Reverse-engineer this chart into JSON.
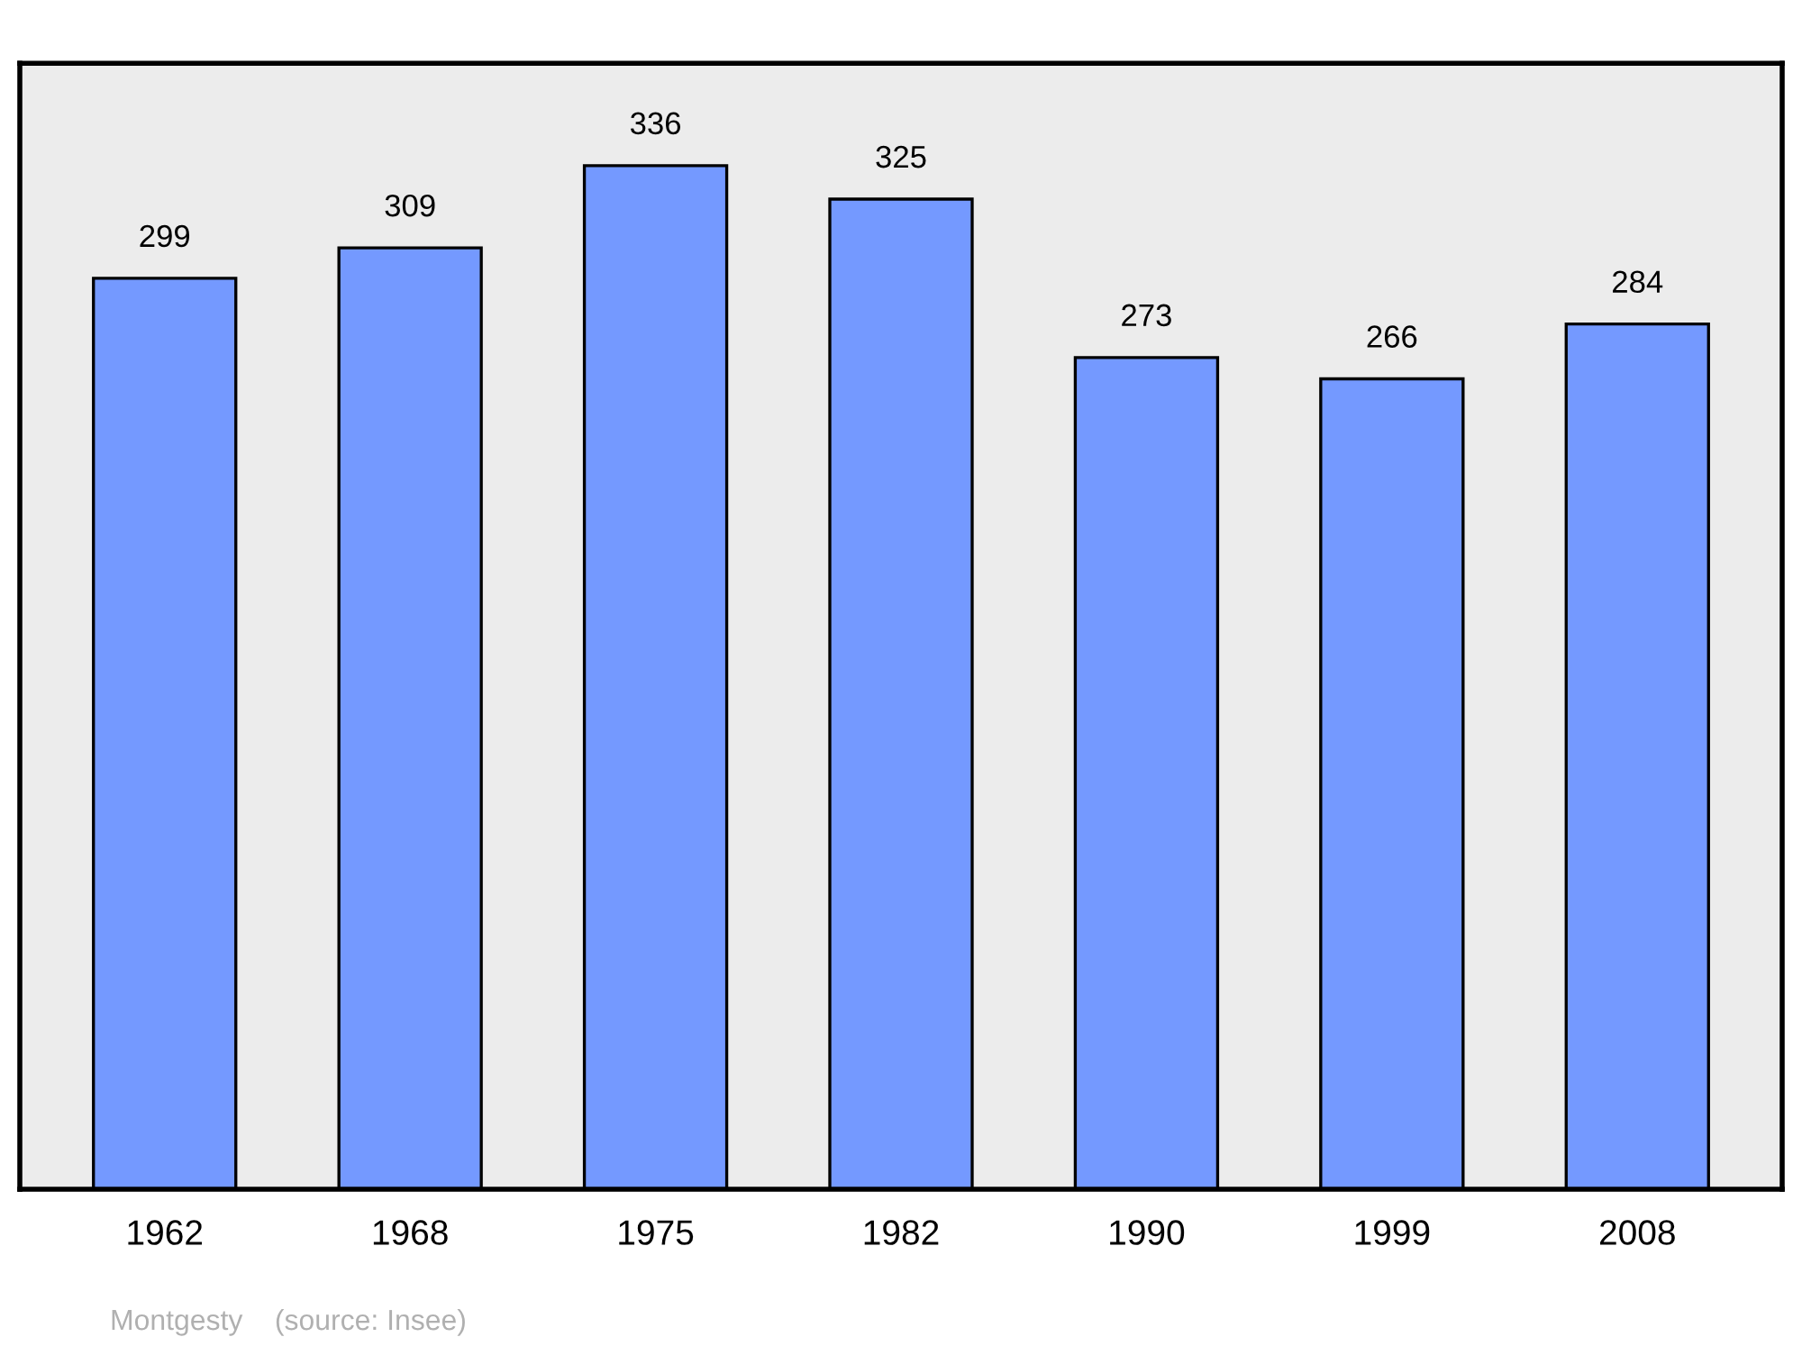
{
  "chart_data": {
    "type": "bar",
    "categories": [
      "1962",
      "1968",
      "1975",
      "1982",
      "1990",
      "1999",
      "2008"
    ],
    "values": [
      299,
      309,
      336,
      325,
      273,
      266,
      284
    ],
    "color": "#7499ff",
    "tick_labels": "x",
    "data_labels": true,
    "grid": false,
    "annotations": [
      "Montgesty    (source: Insee)"
    ]
  }
}
